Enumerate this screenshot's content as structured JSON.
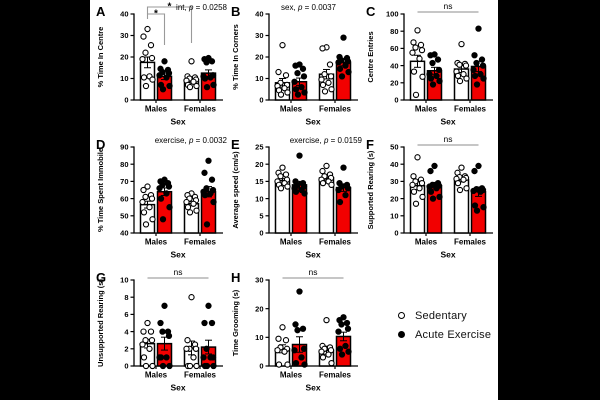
{
  "colors": {
    "sedentary_fill": "#FFFFFF",
    "exercise_fill": "#F20000",
    "outline": "#000000",
    "ns_line": "#8C8C8C",
    "letterbox": "#000000",
    "figure_background": "#FFFFFF"
  },
  "legend": {
    "items": [
      {
        "label": "Sedentary",
        "marker": "open-circle"
      },
      {
        "label": "Acute Exercise",
        "marker": "filled-circle"
      }
    ]
  },
  "chart_data": [
    {
      "id": "A",
      "type": "bar",
      "ylabel": "% Time In Centre",
      "xlabel": "Sex",
      "ylim": [
        0,
        40
      ],
      "yticks": [
        0,
        10,
        20,
        30,
        40
      ],
      "categories": [
        "Males",
        "Females"
      ],
      "annotation": "int, p = 0.0258",
      "sig": {
        "style": "brackets",
        "brackets": [
          {
            "from": [
              0,
              0
            ],
            "to": [
              0,
              1
            ],
            "label": "*"
          },
          {
            "from": [
              0,
              0
            ],
            "to": [
              1,
              0
            ],
            "label": "*"
          }
        ]
      },
      "series": [
        {
          "name": "Sedentary",
          "means": [
            17.5,
            9.5
          ],
          "sem": [
            2.5,
            1.2
          ],
          "points": [
            [
              33,
              29.5,
              25.5,
              22,
              19.5,
              19,
              11,
              10.5,
              9.5,
              6.5
            ],
            [
              18,
              11,
              10.5,
              10,
              9.5,
              9,
              8.5,
              7,
              6.5,
              6
            ]
          ]
        },
        {
          "name": "Acute Exercise",
          "means": [
            11,
            12.5
          ],
          "sem": [
            1.5,
            1.5
          ],
          "points": [
            [
              18,
              14.5,
              14,
              13,
              12.5,
              11.5,
              10.5,
              7,
              6.5,
              5
            ],
            [
              19.5,
              19,
              18,
              17.5,
              11.5,
              11,
              10.5,
              10,
              7,
              6
            ]
          ]
        }
      ]
    },
    {
      "id": "B",
      "type": "bar",
      "ylabel": "% Time In Corners",
      "xlabel": "Sex",
      "ylim": [
        0,
        40
      ],
      "yticks": [
        0,
        10,
        20,
        30,
        40
      ],
      "categories": [
        "Males",
        "Females"
      ],
      "annotation": "sex, p = 0.0037",
      "series": [
        {
          "name": "Sedentary",
          "means": [
            8,
            12
          ],
          "sem": [
            2,
            2.2
          ],
          "points": [
            [
              25.5,
              13,
              11.5,
              8,
              7,
              6.5,
              5.5,
              4.5,
              3.5,
              2.5
            ],
            [
              24.5,
              24,
              16.5,
              12,
              11,
              9.5,
              8,
              7,
              5,
              4
            ]
          ]
        },
        {
          "name": "Acute Exercise",
          "means": [
            8.5,
            17.5
          ],
          "sem": [
            1.7,
            1.6
          ],
          "points": [
            [
              16.5,
              16,
              14.5,
              12.5,
              11,
              8.5,
              6,
              5,
              3.5,
              2.5
            ],
            [
              29,
              20,
              19.5,
              18.5,
              18,
              17.5,
              16,
              14.5,
              13,
              11
            ]
          ]
        }
      ]
    },
    {
      "id": "C",
      "type": "bar",
      "ylabel": "Centre Entries",
      "xlabel": "Sex",
      "ylim": [
        0,
        100
      ],
      "yticks": [
        0,
        20,
        40,
        60,
        80,
        100
      ],
      "categories": [
        "Males",
        "Females"
      ],
      "sig": {
        "style": "ns-line",
        "label": "ns"
      },
      "series": [
        {
          "name": "Sedentary",
          "means": [
            45,
            36
          ],
          "sem": [
            7,
            4
          ],
          "points": [
            [
              81,
              67,
              64,
              61,
              58,
              55,
              48,
              33,
              27,
              6
            ],
            [
              65,
              43,
              42,
              41,
              40,
              33,
              30,
              28,
              25,
              22
            ]
          ]
        },
        {
          "name": "Acute Exercise",
          "means": [
            34,
            39
          ],
          "sem": [
            4,
            6
          ],
          "points": [
            [
              53,
              52,
              47,
              43,
              35,
              30,
              28,
              25,
              22,
              18
            ],
            [
              83,
              52,
              47,
              43,
              40,
              35,
              30,
              28,
              25,
              18
            ]
          ]
        }
      ]
    },
    {
      "id": "D",
      "type": "bar",
      "ylabel": "% Time Spent Immobile",
      "xlabel": "Sex",
      "ylim": [
        40,
        90
      ],
      "yticks": [
        40,
        50,
        60,
        70,
        80,
        90
      ],
      "categories": [
        "Males",
        "Females"
      ],
      "annotation": "exercise, p = 0.0032",
      "series": [
        {
          "name": "Sedentary",
          "means": [
            56.5,
            57
          ],
          "sem": [
            2,
            1.2
          ],
          "points": [
            [
              67,
              65,
              62,
              61,
              60,
              58,
              55,
              52,
              48,
              45
            ],
            [
              63,
              62,
              61,
              60,
              59,
              58,
              57,
              55,
              53,
              52
            ]
          ]
        },
        {
          "name": "Acute Exercise",
          "means": [
            64,
            64
          ],
          "sem": [
            2.2,
            3
          ],
          "points": [
            [
              71,
              70,
              69,
              68,
              67,
              66,
              63,
              60,
              55,
              48
            ],
            [
              82,
              75,
              71,
              66,
              65,
              64,
              63,
              62,
              58,
              45
            ]
          ]
        }
      ]
    },
    {
      "id": "E",
      "type": "bar",
      "ylabel": "Average speed (cm/s)",
      "xlabel": "Sex",
      "ylim": [
        0,
        25
      ],
      "yticks": [
        0,
        5,
        10,
        15,
        20,
        25
      ],
      "categories": [
        "Males",
        "Females"
      ],
      "annotation": "exercise, p = 0.0159",
      "series": [
        {
          "name": "Sedentary",
          "means": [
            15.2,
            16
          ],
          "sem": [
            0.6,
            0.6
          ],
          "points": [
            [
              19,
              17.5,
              17,
              16.5,
              15.5,
              15,
              14.5,
              14,
              13.5,
              13
            ],
            [
              19.5,
              18,
              17,
              16.5,
              16,
              15.5,
              15,
              14.5,
              14
            ]
          ]
        },
        {
          "name": "Acute Exercise",
          "means": [
            14,
            13.2
          ],
          "sem": [
            1,
            1.1
          ],
          "points": [
            [
              22.5,
              15,
              14.5,
              14,
              13.5,
              13,
              12.5,
              12,
              11.5
            ],
            [
              19,
              14.5,
              14,
              13.5,
              13,
              12.5,
              11,
              9
            ]
          ]
        }
      ]
    },
    {
      "id": "F",
      "type": "bar",
      "ylabel": "Supported Rearing (s)",
      "xlabel": "Sex",
      "ylim": [
        0,
        50
      ],
      "yticks": [
        0,
        10,
        20,
        30,
        40,
        50
      ],
      "categories": [
        "Males",
        "Females"
      ],
      "sig": {
        "style": "ns-line",
        "label": "ns"
      },
      "series": [
        {
          "name": "Sedentary",
          "means": [
            27.5,
            31
          ],
          "sem": [
            2.3,
            1.3
          ],
          "points": [
            [
              44,
              33,
              31,
              30,
              29,
              28,
              26,
              24,
              21,
              17
            ],
            [
              38,
              35,
              33,
              32.5,
              32,
              31.5,
              31,
              29,
              26,
              25
            ]
          ]
        },
        {
          "name": "Acute Exercise",
          "means": [
            27.5,
            24
          ],
          "sem": [
            1.9,
            2.7
          ],
          "points": [
            [
              39,
              36,
              29,
              28,
              27.5,
              27,
              26,
              24,
              21,
              20
            ],
            [
              39,
              36,
              26,
              25.5,
              25,
              24.5,
              24,
              16,
              15,
              13
            ]
          ]
        }
      ]
    },
    {
      "id": "G",
      "type": "bar",
      "ylabel": "Unsupported Rearing (s)",
      "xlabel": "Sex",
      "ylim": [
        0,
        10
      ],
      "yticks": [
        0,
        2,
        4,
        6,
        8,
        10
      ],
      "categories": [
        "Males",
        "Females"
      ],
      "sig": {
        "style": "ns-line",
        "label": "ns"
      },
      "series": [
        {
          "name": "Sedentary",
          "means": [
            2.6,
            2.1
          ],
          "sem": [
            0.5,
            0.8
          ],
          "points": [
            [
              5,
              4,
              4,
              3,
              3,
              2.5,
              2,
              1,
              0,
              0
            ],
            [
              8,
              3,
              2.5,
              2,
              2,
              2,
              1,
              0,
              0,
              0
            ]
          ]
        },
        {
          "name": "Acute Exercise",
          "means": [
            2.6,
            2.2
          ],
          "sem": [
            0.75,
            0.8
          ],
          "points": [
            [
              7,
              5,
              4,
              4,
              3.5,
              1,
              1,
              1,
              0,
              0
            ],
            [
              7,
              5,
              5,
              2,
              1,
              1,
              1,
              0,
              0,
              0
            ]
          ]
        }
      ]
    },
    {
      "id": "H",
      "type": "bar",
      "ylabel": "Time Grooming (s)",
      "xlabel": "Sex",
      "ylim": [
        0,
        30
      ],
      "yticks": [
        0,
        10,
        20,
        30
      ],
      "categories": [
        "Males",
        "Females"
      ],
      "sig": {
        "style": "ns-line",
        "label": "ns"
      },
      "series": [
        {
          "name": "Sedentary",
          "means": [
            6,
            5.5
          ],
          "sem": [
            1.4,
            1.4
          ],
          "points": [
            [
              13.5,
              9.5,
              9,
              6.5,
              6,
              5.5,
              5,
              0.5,
              0.5
            ],
            [
              16,
              7,
              6.5,
              6,
              5.5,
              5,
              4,
              3,
              1
            ]
          ]
        },
        {
          "name": "Acute Exercise",
          "means": [
            7.5,
            10.3
          ],
          "sem": [
            2.7,
            1.5
          ],
          "points": [
            [
              26,
              14.5,
              13,
              12.5,
              6,
              5.5,
              3,
              1,
              0.5
            ],
            [
              17,
              16,
              15,
              14.5,
              13,
              12,
              7,
              6,
              5,
              4
            ]
          ]
        }
      ]
    }
  ]
}
